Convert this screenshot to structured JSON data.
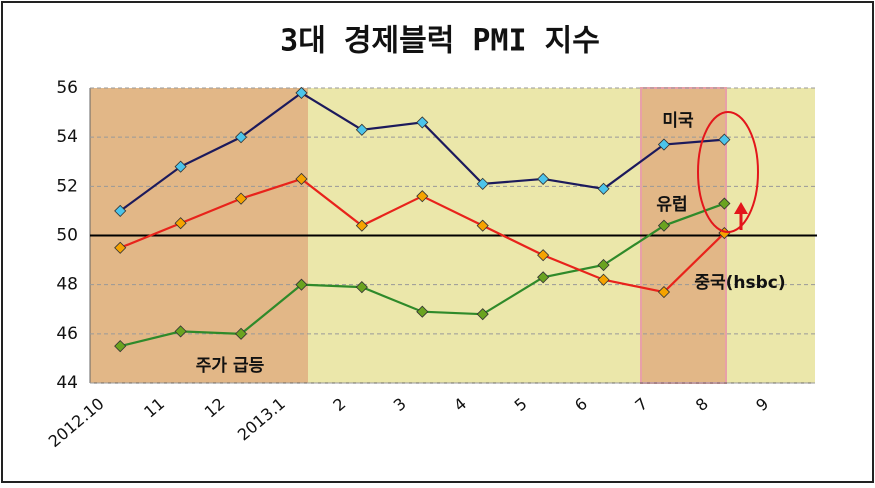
{
  "chart_data": {
    "type": "line",
    "title": "3대 경제블럭 PMI 지수",
    "categories": [
      "2012.10",
      "11",
      "12",
      "2013.1",
      "2",
      "3",
      "4",
      "5",
      "6",
      "7",
      "8",
      "9"
    ],
    "series": [
      {
        "name": "미국",
        "color": "#1c1a5c",
        "marker_color": "#4cc4ea",
        "values": [
          51.0,
          52.8,
          54.0,
          55.8,
          54.3,
          54.6,
          52.1,
          52.3,
          51.9,
          53.7,
          53.9,
          null
        ]
      },
      {
        "name": "유럽",
        "color": "#2f8a2a",
        "marker_color": "#6aa320",
        "values": [
          45.5,
          46.1,
          46.0,
          48.0,
          47.9,
          46.9,
          46.8,
          48.3,
          48.8,
          50.4,
          51.3,
          null
        ]
      },
      {
        "name": "중국(hsbc)",
        "color": "#e8231b",
        "marker_color": "#f5a300",
        "values": [
          49.5,
          50.5,
          51.5,
          52.3,
          50.4,
          51.6,
          50.4,
          49.2,
          48.2,
          47.7,
          50.1,
          null
        ]
      }
    ],
    "annotation": "주가 급등",
    "reference_line": 50,
    "ylim": [
      44,
      56
    ],
    "yticks": [
      44,
      46,
      48,
      50,
      52,
      54,
      56
    ],
    "grid": true
  }
}
